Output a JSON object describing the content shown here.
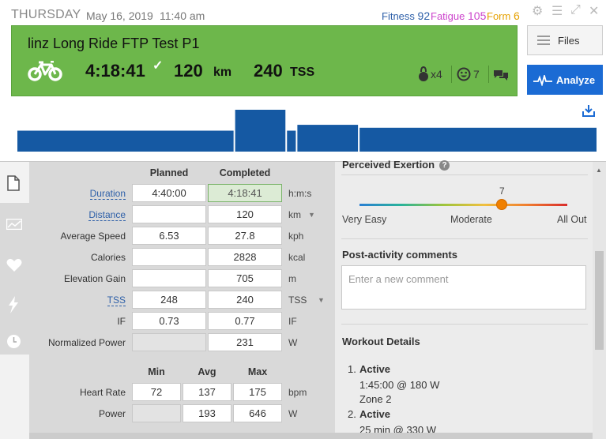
{
  "header": {
    "day": "THURSDAY",
    "date": "May 16, 2019",
    "time": "11:40 am",
    "fitness_label": "Fitness",
    "fitness_value": "92",
    "fatigue_label": "Fatigue",
    "fatigue_value": "105",
    "form_label": "Form",
    "form_value": "6"
  },
  "workout": {
    "title": "linz Long Ride FTP Test P1",
    "duration": "4:18:41",
    "distance": "120",
    "distance_unit": "km",
    "tss": "240",
    "tss_unit": "TSS",
    "kettlebell_count": "x4",
    "feel_count": "7"
  },
  "buttons": {
    "files": "Files",
    "analyze": "Analyze"
  },
  "colors": {
    "card_green": "#6db74b",
    "accent_blue": "#1b6bd4",
    "bar_blue": "#1559a3",
    "fitness": "#2d5fa8",
    "fatigue": "#cc44cc",
    "form": "#e6a100"
  },
  "intensity_chart": {
    "segments": [
      {
        "start_min": 0,
        "end_min": 105,
        "level": 0.5
      },
      {
        "start_min": 105,
        "end_min": 130,
        "level": 1.0
      },
      {
        "start_min": 130,
        "end_min": 135,
        "level": 0.5
      },
      {
        "start_min": 135,
        "end_min": 165,
        "level": 0.64
      },
      {
        "start_min": 165,
        "end_min": 280,
        "level": 0.57
      }
    ]
  },
  "summary": {
    "col_planned": "Planned",
    "col_completed": "Completed",
    "rows": [
      {
        "label": "Duration",
        "planned": "4:40:00",
        "completed": "4:18:41",
        "unit": "h:m:s"
      },
      {
        "label": "Distance",
        "planned": "",
        "completed": "120",
        "unit": "km"
      },
      {
        "label": "Average Speed",
        "planned": "6.53",
        "completed": "27.8",
        "unit": "kph"
      },
      {
        "label": "Calories",
        "planned": "",
        "completed": "2828",
        "unit": "kcal"
      },
      {
        "label": "Elevation Gain",
        "planned": "",
        "completed": "705",
        "unit": "m"
      },
      {
        "label": "TSS",
        "planned": "248",
        "completed": "240",
        "unit": "TSS"
      },
      {
        "label": "IF",
        "planned": "0.73",
        "completed": "0.77",
        "unit": "IF"
      },
      {
        "label": "Normalized Power",
        "planned": "",
        "completed": "231",
        "unit": "W"
      }
    ]
  },
  "minmax": {
    "col_min": "Min",
    "col_avg": "Avg",
    "col_max": "Max",
    "rows": [
      {
        "label": "Heart Rate",
        "min": "72",
        "avg": "137",
        "max": "175",
        "unit": "bpm"
      },
      {
        "label": "Power",
        "min": "",
        "avg": "193",
        "max": "646",
        "unit": "W"
      }
    ]
  },
  "exertion": {
    "label": "Perceived Exertion",
    "value": "7",
    "value_fraction": 0.69,
    "low": "Very Easy",
    "mid": "Moderate",
    "high": "All Out"
  },
  "comments": {
    "label": "Post-activity comments",
    "placeholder": "Enter a new comment"
  },
  "workout_details": {
    "label": "Workout Details",
    "steps": [
      {
        "num": "1.",
        "name": "Active",
        "lines": [
          "1:45:00 @ 180 W",
          "Zone 2"
        ]
      },
      {
        "num": "2.",
        "name": "Active",
        "lines": [
          "25 min @ 330 W"
        ]
      }
    ]
  }
}
